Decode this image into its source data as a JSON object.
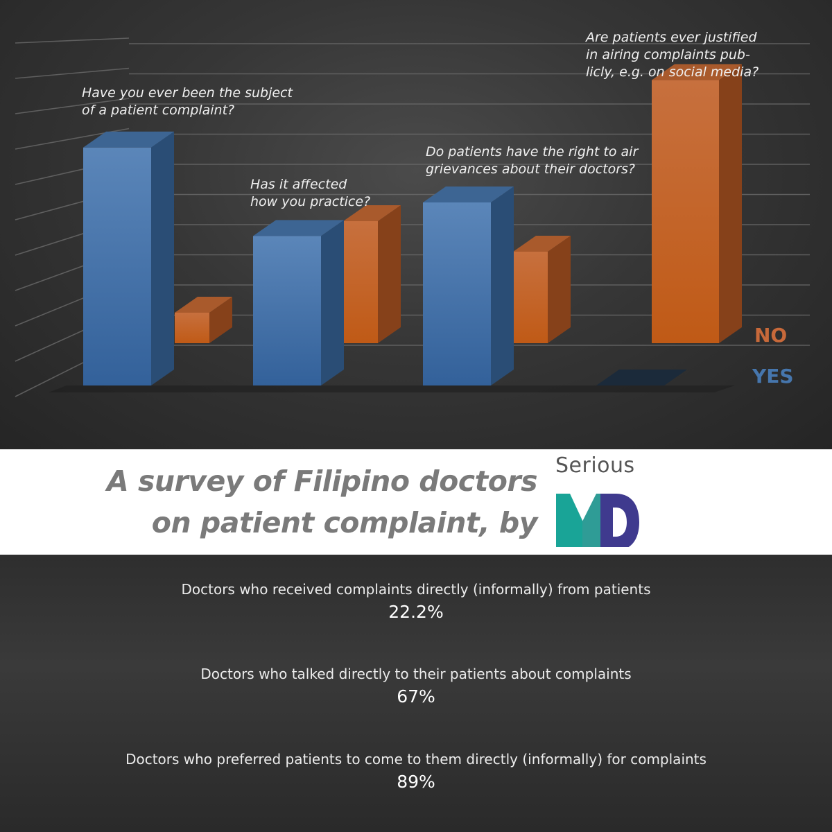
{
  "chart_data": {
    "type": "bar",
    "categories": [
      "Have you ever been the subject of a patient complaint?",
      "Has it affected how you practice?",
      "Do patients have the right to air grievances about their doctors?",
      "Are patients ever justified in airing complaints publicly, e.g. on social media?"
    ],
    "category_label_lines": [
      [
        "Have you ever been the subject",
        "of a patient complaint?"
      ],
      [
        "Has it affected",
        "how you practice?"
      ],
      [
        "Do patients have the right to air",
        "grievances about their doctors?"
      ],
      [
        "Are patients ever justified",
        "in airing complaints pub-",
        "licly, e.g. on social media?"
      ]
    ],
    "series": [
      {
        "name": "YES",
        "color": "#3f6fa6",
        "values": [
          78,
          49,
          60,
          0
        ]
      },
      {
        "name": "NO",
        "color": "#c0621f",
        "values": [
          10,
          40,
          30,
          88
        ]
      }
    ],
    "ylim": [
      0,
      100
    ],
    "grid": true,
    "legend_position": "right",
    "xlabel": "",
    "ylabel": ""
  },
  "title": {
    "line1": "A survey of Filipino doctors",
    "line2": "on patient complaint, by"
  },
  "brand": {
    "word": "Serious",
    "mark": "MD",
    "colors": {
      "m_left": "#1aa497",
      "m_right": "#3f3a8e"
    }
  },
  "stats": [
    {
      "label": "Doctors who received complaints directly (informally) from patients",
      "value": "22.2%"
    },
    {
      "label": "Doctors who talked directly to their patients about complaints",
      "value": "67%"
    },
    {
      "label": "Doctors who preferred patients to come to them directly (informally) for complaints",
      "value": "89%"
    }
  ]
}
